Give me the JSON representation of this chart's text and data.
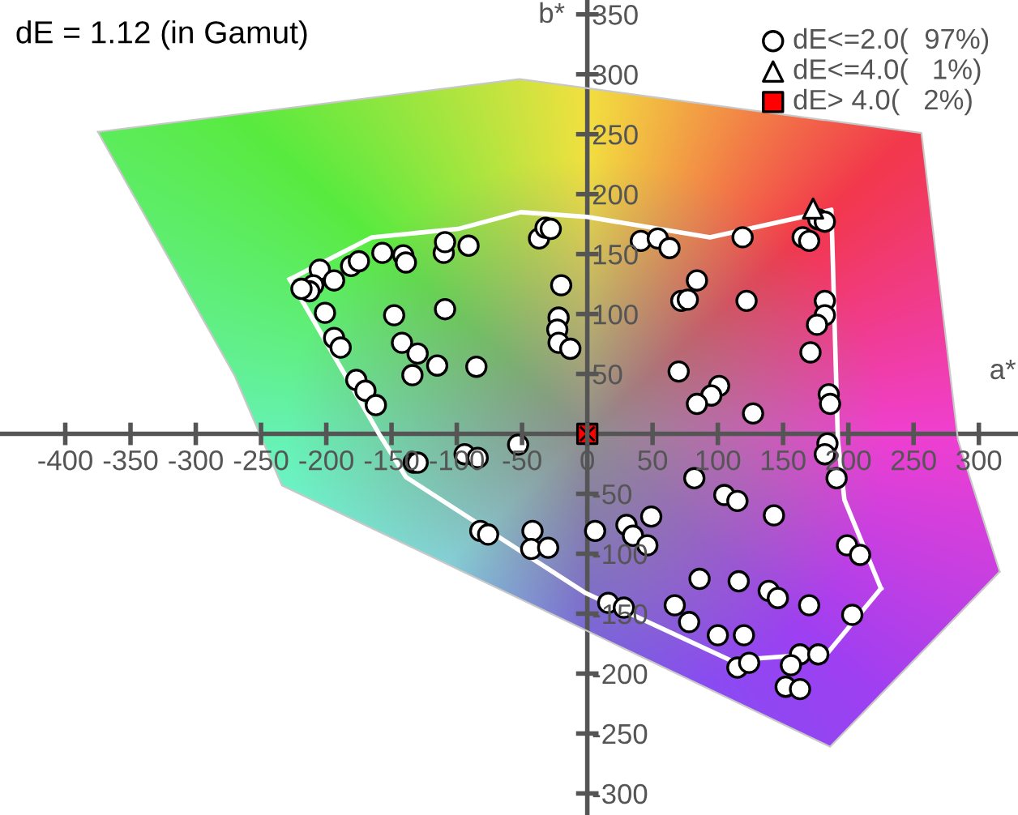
{
  "chart_data": {
    "type": "scatter",
    "title": "dE = 1.12 (in Gamut)",
    "xlabel": "a*",
    "ylabel": "b*",
    "xlim": [
      -450,
      330
    ],
    "ylim": [
      -318,
      362
    ],
    "xticks": [
      -400,
      -350,
      -300,
      -250,
      -200,
      -150,
      -100,
      -50,
      0,
      50,
      100,
      150,
      200,
      250,
      300
    ],
    "yticks": [
      -300,
      -250,
      -200,
      -150,
      -100,
      -50,
      50,
      100,
      150,
      200,
      250,
      300,
      350
    ],
    "grid": false,
    "legend": "top right",
    "series": [
      {
        "type": "line",
        "color": "#c8c8c8",
        "marker": "none",
        "line_style": "solid",
        "x": [
          -375,
          -52,
          256,
          284,
          316
        ],
        "values": [
          252,
          296,
          251,
          -5,
          -115
        ]
      },
      {
        "type": "line",
        "color": "#c8c8c8",
        "marker": "none",
        "line_style": "solid",
        "x": [
          -375,
          -270,
          -234,
          186,
          316
        ],
        "values": [
          252,
          48,
          -43,
          -261,
          -115
        ]
      },
      {
        "type": "line",
        "color": "#ffffff",
        "marker": "none",
        "line_style": "solid",
        "x": [
          -228,
          -165,
          -99,
          -51,
          0,
          94,
          173,
          187,
          192,
          197,
          225
        ],
        "values": [
          129,
          164,
          171,
          185,
          181,
          164,
          183,
          187,
          -5,
          -55,
          -129
        ]
      },
      {
        "type": "line",
        "color": "#ffffff",
        "marker": "none",
        "line_style": "solid",
        "x": [
          -228,
          -159,
          -139,
          -1,
          110,
          184,
          225
        ],
        "values": [
          129,
          -1,
          -36,
          -133,
          -189,
          -183,
          -129
        ]
      },
      {
        "name": "dE<=2.0(  97%)",
        "color": "#ffffff",
        "marker": "circle",
        "x": [
          -205,
          -210,
          -213,
          -219,
          -194,
          -181,
          -175,
          -157,
          -141,
          -139,
          -110,
          -109,
          -91,
          -37,
          -32,
          -28,
          -20,
          -201,
          -148,
          -109,
          -22,
          -23,
          -22,
          -13,
          -194,
          -189,
          -142,
          -130,
          -115,
          -85,
          -134,
          -177,
          -170,
          -162,
          41,
          54,
          63,
          119,
          165,
          170,
          177,
          182,
          84,
          72,
          77,
          122,
          182,
          182,
          176,
          171,
          70,
          101,
          95,
          84,
          127,
          185,
          186,
          -133,
          -130,
          -94,
          -84,
          -53,
          -82,
          -76,
          -42,
          -43,
          -30,
          6,
          184,
          182,
          191,
          82,
          105,
          115,
          143,
          49,
          30,
          35,
          46,
          199,
          209,
          86,
          116,
          139,
          146,
          170,
          67,
          16,
          28,
          78,
          100,
          120,
          203,
          115,
          124,
          163,
          177,
          156,
          152,
          163
        ],
        "values": [
          137,
          124,
          119,
          121,
          128,
          140,
          144,
          151,
          149,
          143,
          151,
          160,
          157,
          163,
          172,
          171,
          124,
          101,
          99,
          104,
          97,
          87,
          76,
          71,
          80,
          72,
          76,
          67,
          57,
          56,
          49,
          45,
          36,
          24,
          161,
          163,
          155,
          164,
          164,
          161,
          179,
          177,
          128,
          111,
          112,
          111,
          111,
          99,
          91,
          68,
          52,
          40,
          32,
          25,
          17,
          33,
          25,
          -24,
          -24,
          -17,
          -20,
          -9,
          -81,
          -84,
          -81,
          -96,
          -95,
          -81,
          -8,
          -17,
          -37,
          -37,
          -51,
          -56,
          -68,
          -69,
          -76,
          -85,
          -93,
          -93,
          -101,
          -121,
          -123,
          -131,
          -137,
          -143,
          -143,
          -141,
          -145,
          -157,
          -168,
          -168,
          -151,
          -195,
          -191,
          -184,
          -184,
          -193,
          -211,
          -213
        ]
      },
      {
        "name": "dE<=4.0(   1%)",
        "color": "#ffffff",
        "marker": "triangle",
        "x": [
          173
        ],
        "values": [
          188
        ]
      },
      {
        "name": "dE> 4.0(   2%)",
        "color": "#ff0000",
        "marker": "square",
        "x": [
          0
        ],
        "values": [
          0
        ]
      }
    ]
  }
}
